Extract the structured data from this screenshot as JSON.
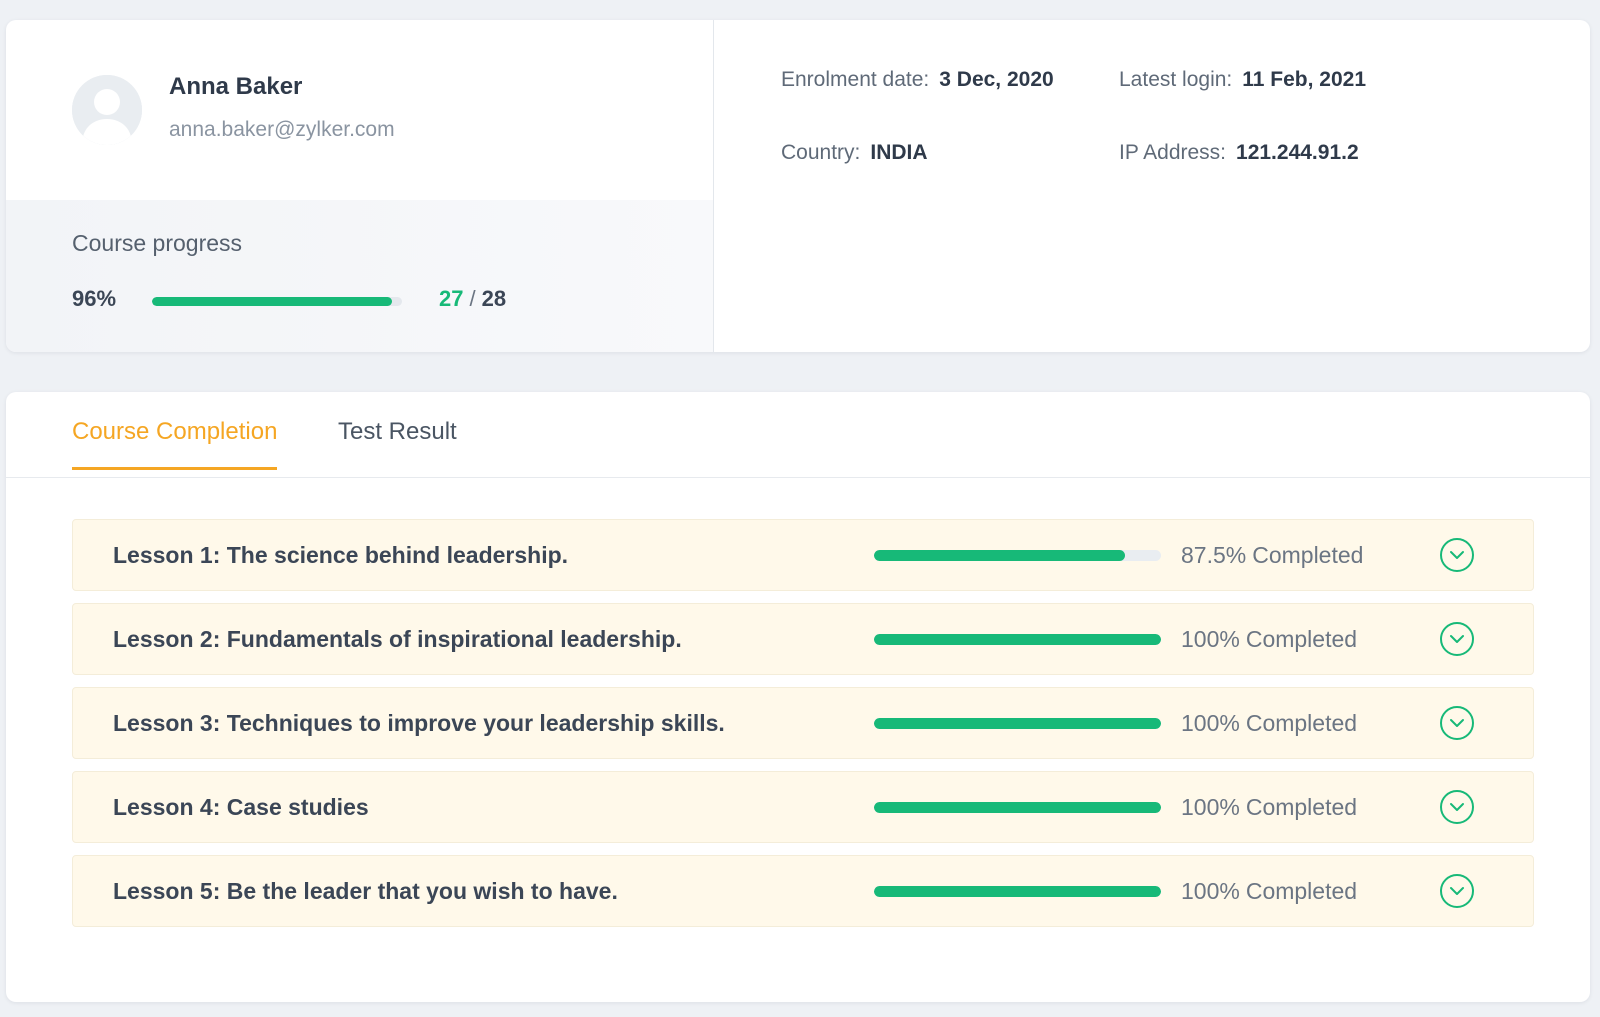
{
  "profile": {
    "name": "Anna Baker",
    "email": "anna.baker@zylker.com",
    "avatar_icon": "user-avatar-icon"
  },
  "course_progress": {
    "title": "Course progress",
    "percent_label": "96%",
    "percent_value": 96,
    "completed": "27",
    "separator": "/",
    "total": "28"
  },
  "info": {
    "enrolment_label": "Enrolment date:",
    "enrolment_value": "3 Dec, 2020",
    "login_label": "Latest login:",
    "login_value": "11 Feb, 2021",
    "country_label": "Country:",
    "country_value": "INDIA",
    "ip_label": "IP Address:",
    "ip_value": "121.244.91.2"
  },
  "tabs": [
    {
      "label": "Course Completion",
      "active": true
    },
    {
      "label": "Test Result",
      "active": false
    }
  ],
  "lessons": [
    {
      "title": "Lesson 1: The science behind leadership.",
      "percent_label": "87.5%",
      "percent_value": 87.5,
      "status": "Completed"
    },
    {
      "title": "Lesson 2: Fundamentals of inspirational leadership.",
      "percent_label": "100%",
      "percent_value": 100,
      "status": "Completed"
    },
    {
      "title": "Lesson 3: Techniques to improve your leadership skills.",
      "percent_label": "100%",
      "percent_value": 100,
      "status": "Completed"
    },
    {
      "title": "Lesson 4: Case studies",
      "percent_label": "100%",
      "percent_value": 100,
      "status": "Completed"
    },
    {
      "title": "Lesson 5: Be the leader that you wish to have.",
      "percent_label": "100%",
      "percent_value": 100,
      "status": "Completed"
    }
  ],
  "colors": {
    "accent": "#f5a623",
    "progress": "#17b978",
    "lesson_bg": "#fff9ea"
  },
  "icons": {
    "expand": "chevron-down-circle-icon"
  }
}
